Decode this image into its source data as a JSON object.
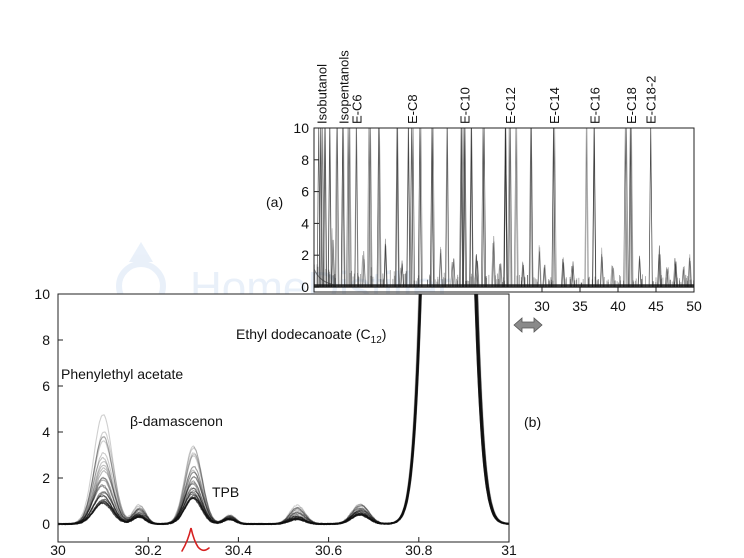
{
  "watermark": "HomeDistiller",
  "chart_data": [
    {
      "panel": "(a)",
      "type": "line",
      "xlim": [
        0,
        50
      ],
      "ylim": [
        0,
        10
      ],
      "x_ticks": [
        30,
        35,
        40,
        45,
        50
      ],
      "y_ticks": [
        0,
        2,
        4,
        6,
        8,
        10
      ],
      "peak_labels": [
        {
          "name": "Isobutanol",
          "x": 1.0
        },
        {
          "name": "Isopentanols",
          "x": 3.9
        },
        {
          "name": "E-C6",
          "x": 5.6
        },
        {
          "name": "E-C8",
          "x": 12.9
        },
        {
          "name": "E-C10",
          "x": 19.8
        },
        {
          "name": "E-C12",
          "x": 25.8
        },
        {
          "name": "E-C14",
          "x": 31.6
        },
        {
          "name": "E-C16",
          "x": 36.9
        },
        {
          "name": "E-C18",
          "x": 41.7
        },
        {
          "name": "E-C18-2",
          "x": 44.3
        }
      ],
      "tall_peaks_x": [
        0.5,
        1.0,
        1.4,
        2.1,
        3.0,
        3.9,
        4.6,
        5.6,
        7.3,
        8.6,
        10.9,
        12.4,
        12.9,
        14.0,
        15.6,
        17.5,
        19.4,
        19.8,
        20.6,
        22.3,
        25.3,
        25.8,
        26.6,
        28.6,
        31.6,
        35.8,
        36.9,
        41.1,
        41.7,
        44.3
      ],
      "small_peaks": [
        [
          2.4,
          3.6
        ],
        [
          6.5,
          2.2
        ],
        [
          9.5,
          3.0
        ],
        [
          11.5,
          1.6
        ],
        [
          16.6,
          2.6
        ],
        [
          18.3,
          1.8
        ],
        [
          21.4,
          2.2
        ],
        [
          23.6,
          3.2
        ],
        [
          24.5,
          1.5
        ],
        [
          27.5,
          1.8
        ],
        [
          29.6,
          2.6
        ],
        [
          30.4,
          1.4
        ],
        [
          32.8,
          2.0
        ],
        [
          34.0,
          1.6
        ],
        [
          37.8,
          2.4
        ],
        [
          39.3,
          1.6
        ],
        [
          42.8,
          2.0
        ],
        [
          45.5,
          2.6
        ],
        [
          46.5,
          1.5
        ],
        [
          47.6,
          1.8
        ],
        [
          48.6,
          1.3
        ],
        [
          49.4,
          2.0
        ]
      ],
      "noise_peaks": [
        [
          0.3,
          1.8
        ],
        [
          1.8,
          1.3
        ],
        [
          2.7,
          1.0
        ],
        [
          5.0,
          1.1
        ],
        [
          6.0,
          0.9
        ],
        [
          7.8,
          1.2
        ],
        [
          9.0,
          0.8
        ],
        [
          10.3,
          1.0
        ],
        [
          11.9,
          0.9
        ],
        [
          13.5,
          0.7
        ],
        [
          15.0,
          0.8
        ],
        [
          16.0,
          0.6
        ],
        [
          17.0,
          0.9
        ],
        [
          18.8,
          0.7
        ],
        [
          20.2,
          0.6
        ],
        [
          21.0,
          0.8
        ],
        [
          22.8,
          0.7
        ],
        [
          24.0,
          0.9
        ],
        [
          25.0,
          0.6
        ],
        [
          27.0,
          0.7
        ],
        [
          28.0,
          0.8
        ],
        [
          29.2,
          0.6
        ],
        [
          30.9,
          0.7
        ],
        [
          31.2,
          0.5
        ],
        [
          33.4,
          0.6
        ],
        [
          34.6,
          0.7
        ],
        [
          35.3,
          0.5
        ],
        [
          36.3,
          0.6
        ],
        [
          37.3,
          0.7
        ],
        [
          38.4,
          0.6
        ],
        [
          39.8,
          0.5
        ],
        [
          40.5,
          0.7
        ],
        [
          42.3,
          0.6
        ],
        [
          43.4,
          0.8
        ],
        [
          44.9,
          0.6
        ],
        [
          46.0,
          0.7
        ],
        [
          47.1,
          0.5
        ],
        [
          48.1,
          0.6
        ],
        [
          49.0,
          0.7
        ],
        [
          49.7,
          0.5
        ]
      ]
    },
    {
      "panel": "(b)",
      "type": "line",
      "xlim": [
        30,
        31
      ],
      "ylim": [
        0,
        10
      ],
      "x_ticks": [
        "30",
        "30.2",
        "30.4",
        "30.6",
        "30.8",
        "31"
      ],
      "y_ticks": [
        0,
        2,
        4,
        6,
        8,
        10
      ],
      "annotations": [
        {
          "text": "Phenylethyl acetate",
          "x": 30.1,
          "y": 4.3
        },
        {
          "text": "β-damascenon",
          "x": 30.3,
          "y": 3.4
        },
        {
          "text": "TPB",
          "x": 30.35,
          "y": 1.4
        },
        {
          "text": "Ethyl dodecanoate (C",
          "subscript": "12",
          "suffix": ")",
          "x": 30.87,
          "y": 10
        }
      ],
      "replicate_count": 25,
      "peaks": [
        {
          "x": 30.1,
          "sigma": 0.021,
          "min": 0.9,
          "max": 4.3
        },
        {
          "x": 30.18,
          "sigma": 0.014,
          "min": 0.3,
          "max": 0.8
        },
        {
          "x": 30.3,
          "sigma": 0.019,
          "min": 1.1,
          "max": 3.4
        },
        {
          "x": 30.38,
          "sigma": 0.013,
          "min": 0.2,
          "max": 0.4
        },
        {
          "x": 30.53,
          "sigma": 0.017,
          "min": 0.2,
          "max": 0.8
        },
        {
          "x": 30.67,
          "sigma": 0.019,
          "min": 0.4,
          "max": 0.9
        },
        {
          "x": 30.865,
          "sigma": 0.032,
          "min": 60,
          "max": 80
        }
      ]
    }
  ]
}
